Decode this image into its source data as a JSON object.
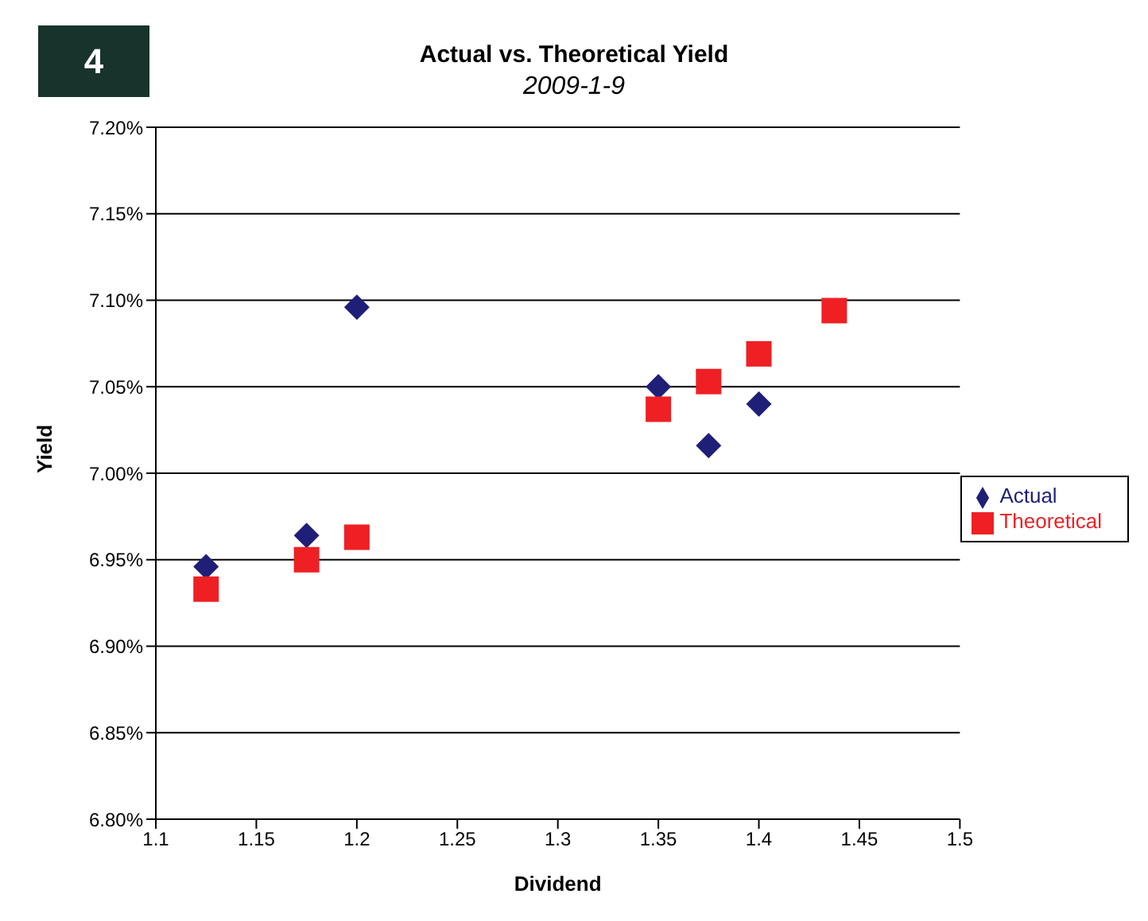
{
  "chart_data": {
    "type": "scatter",
    "title": "Actual vs. Theoretical Yield",
    "subtitle": "2009-1-9",
    "xlabel": "Dividend",
    "ylabel": "Yield",
    "annotations": [
      "4"
    ],
    "series": [
      {
        "name": "Actual",
        "color": "#1f1f78",
        "marker": "diamond",
        "x": [
          1.125,
          1.175,
          1.2,
          1.35,
          1.375,
          1.4
        ],
        "values": [
          6.946,
          6.964,
          7.096,
          7.05,
          7.016,
          7.04
        ]
      },
      {
        "name": "Theoretical",
        "color": "#ee2024",
        "marker": "square",
        "x": [
          1.125,
          1.175,
          1.2,
          1.35,
          1.375,
          1.4,
          1.4375
        ],
        "values": [
          6.933,
          6.95,
          6.963,
          7.037,
          7.053,
          7.069,
          7.094
        ]
      }
    ],
    "xlim": [
      1.1,
      1.5
    ],
    "xticks": [
      1.1,
      1.15,
      1.2,
      1.25,
      1.3,
      1.35,
      1.4,
      1.45,
      1.5
    ],
    "ylim": [
      6.8,
      7.2
    ],
    "yticks": [
      {
        "value": 6.8,
        "label": "6.80%"
      },
      {
        "value": 6.85,
        "label": "6.85%"
      },
      {
        "value": 6.9,
        "label": "6.90%"
      },
      {
        "value": 6.95,
        "label": "6.95%"
      },
      {
        "value": 7.0,
        "label": "7.00%"
      },
      {
        "value": 7.05,
        "label": "7.05%"
      },
      {
        "value": 7.1,
        "label": "7.10%"
      },
      {
        "value": 7.15,
        "label": "7.15%"
      },
      {
        "value": 7.2,
        "label": "7.20%"
      }
    ],
    "grid": "y",
    "legend": "right"
  }
}
